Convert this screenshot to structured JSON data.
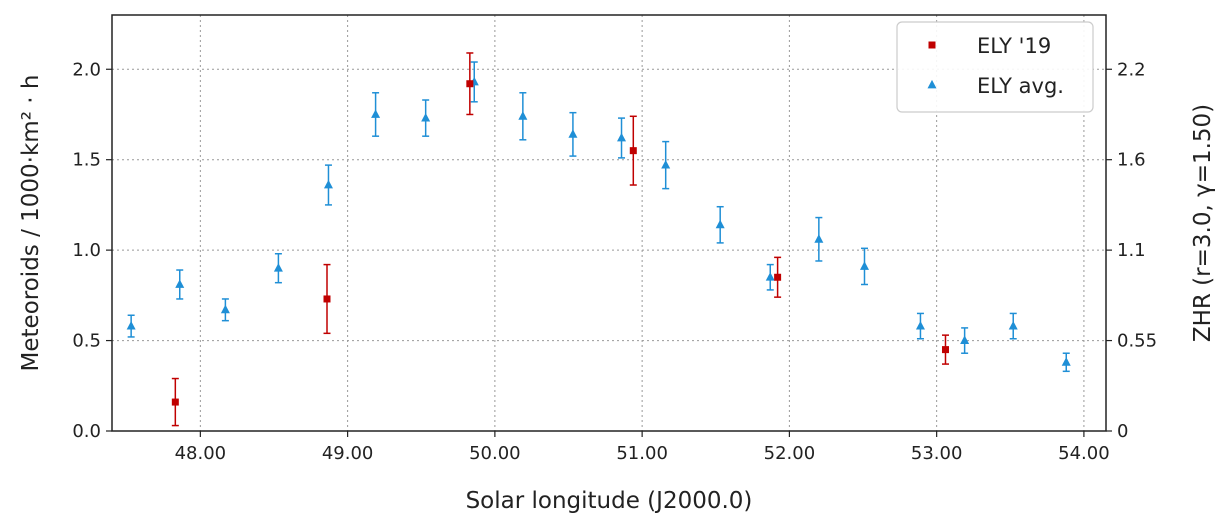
{
  "chart_data": {
    "type": "scatter",
    "xlabel": "Solar longitude (J2000.0)",
    "ylabel": "Meteoroids / 1000·km² · h",
    "y2label": "ZHR (r=3.0, γ=1.50)",
    "xlim": [
      47.4,
      54.15
    ],
    "ylim": [
      0.0,
      2.3
    ],
    "xticks": [
      48.0,
      49.0,
      50.0,
      51.0,
      52.0,
      53.0,
      54.0
    ],
    "xtick_labels": [
      "48.00",
      "49.00",
      "50.00",
      "51.00",
      "52.00",
      "53.00",
      "54.00"
    ],
    "yticks": [
      0.0,
      0.5,
      1.0,
      1.5,
      2.0
    ],
    "ytick_labels": [
      "0.0",
      "0.5",
      "1.0",
      "1.5",
      "2.0"
    ],
    "y2ticks": [
      0.0,
      0.5,
      1.0,
      1.5,
      2.0
    ],
    "y2tick_labels": [
      "0",
      "0.55",
      "1.1",
      "1.6",
      "2.2"
    ],
    "grid": true,
    "legend_position": "top-right",
    "series": [
      {
        "name": "ELY '19",
        "marker": "square",
        "color": "#c00000",
        "points": [
          {
            "x": 47.83,
            "y": 0.16,
            "err": 0.13
          },
          {
            "x": 48.86,
            "y": 0.73,
            "err": 0.19
          },
          {
            "x": 49.83,
            "y": 1.92,
            "err": 0.17
          },
          {
            "x": 50.94,
            "y": 1.55,
            "err": 0.19
          },
          {
            "x": 51.92,
            "y": 0.85,
            "err": 0.11
          },
          {
            "x": 53.06,
            "y": 0.45,
            "err": 0.08
          }
        ]
      },
      {
        "name": "ELY avg.",
        "marker": "triangle",
        "color": "#1f8fd6",
        "points": [
          {
            "x": 47.53,
            "y": 0.58,
            "err": 0.06
          },
          {
            "x": 47.86,
            "y": 0.81,
            "err": 0.08
          },
          {
            "x": 48.17,
            "y": 0.67,
            "err": 0.06
          },
          {
            "x": 48.53,
            "y": 0.9,
            "err": 0.08
          },
          {
            "x": 48.87,
            "y": 1.36,
            "err": 0.11
          },
          {
            "x": 49.19,
            "y": 1.75,
            "err": 0.12
          },
          {
            "x": 49.53,
            "y": 1.73,
            "err": 0.1
          },
          {
            "x": 49.86,
            "y": 1.93,
            "err": 0.11
          },
          {
            "x": 50.19,
            "y": 1.74,
            "err": 0.13
          },
          {
            "x": 50.53,
            "y": 1.64,
            "err": 0.12
          },
          {
            "x": 50.86,
            "y": 1.62,
            "err": 0.11
          },
          {
            "x": 51.16,
            "y": 1.47,
            "err": 0.13
          },
          {
            "x": 51.53,
            "y": 1.14,
            "err": 0.1
          },
          {
            "x": 51.87,
            "y": 0.85,
            "err": 0.07
          },
          {
            "x": 52.2,
            "y": 1.06,
            "err": 0.12
          },
          {
            "x": 52.51,
            "y": 0.91,
            "err": 0.1
          },
          {
            "x": 52.89,
            "y": 0.58,
            "err": 0.07
          },
          {
            "x": 53.19,
            "y": 0.5,
            "err": 0.07
          },
          {
            "x": 53.52,
            "y": 0.58,
            "err": 0.07
          },
          {
            "x": 53.88,
            "y": 0.38,
            "err": 0.05
          }
        ]
      }
    ]
  }
}
